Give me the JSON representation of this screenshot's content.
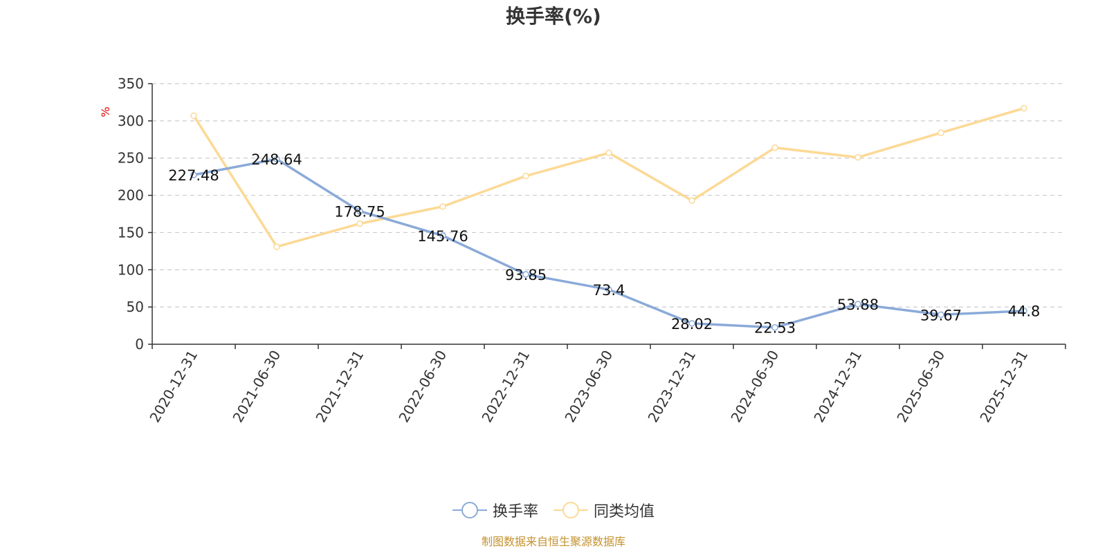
{
  "chart_data": {
    "type": "line",
    "title": "换手率(%)",
    "unit_label": "%",
    "categories": [
      "2020-12-31",
      "2021-06-30",
      "2021-12-31",
      "2022-06-30",
      "2022-12-31",
      "2023-06-30",
      "2023-12-31",
      "2024-06-30",
      "2024-12-31",
      "2025-06-30",
      "2025-12-31"
    ],
    "ylim": [
      0,
      350
    ],
    "yticks": [
      0,
      50,
      100,
      150,
      200,
      250,
      300,
      350
    ],
    "grid": true,
    "legend_position": "bottom",
    "series": [
      {
        "name": "换手率",
        "color": "#8aaad8",
        "values": [
          227.48,
          248.64,
          178.75,
          145.76,
          93.85,
          73.4,
          28.02,
          22.53,
          53.88,
          39.67,
          44.8
        ],
        "labels": [
          "227.48",
          "248.64",
          "178.75",
          "145.76",
          "93.85",
          "73.4",
          "28.02",
          "22.53",
          "53.88",
          "39.67",
          "44.8"
        ]
      },
      {
        "name": "同类均值",
        "color": "#fcd995",
        "values": [
          307,
          131,
          162,
          185,
          226,
          257,
          193,
          264,
          251,
          284,
          317
        ]
      }
    ]
  },
  "source_note": "制图数据来自恒生聚源数据库"
}
